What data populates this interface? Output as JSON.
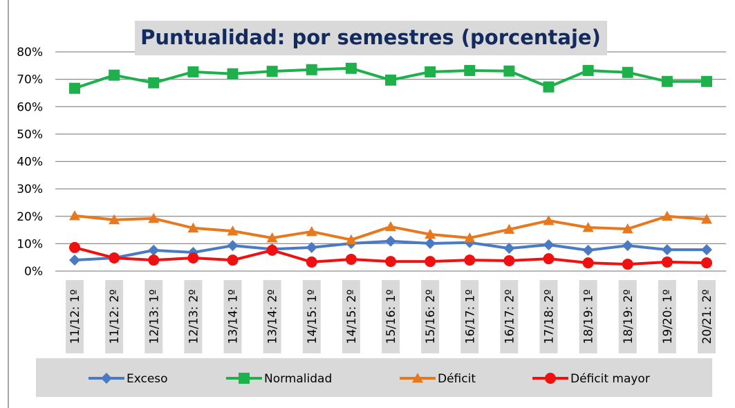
{
  "chart_data": {
    "type": "line",
    "title": "Puntualidad: por semestres (porcentaje)",
    "categories": [
      "11/12: 1º",
      "11/12: 2º",
      "12/13: 1º",
      "12/13: 2º",
      "13/14: 1º",
      "13/14: 2º",
      "14/15: 1º",
      "14/15: 2º",
      "15/16: 1º",
      "15/16: 2º",
      "16/17: 1º",
      "16/17: 2º",
      "17/18: 2º",
      "18/19: 1º",
      "18/19: 2º",
      "19/20: 1º",
      "20/21: 2º"
    ],
    "series": [
      {
        "name": "Exceso",
        "color": "#4a7ac4",
        "marker": "diamond",
        "values": [
          4,
          4.8,
          7.6,
          6.8,
          9.3,
          8,
          8.6,
          10.1,
          10.9,
          10.1,
          10.4,
          8.3,
          9.6,
          7.6,
          9.3,
          7.8,
          7.8
        ]
      },
      {
        "name": "Normalidad",
        "color": "#1db04b",
        "marker": "square",
        "values": [
          66.7,
          71.5,
          68.7,
          72.7,
          72,
          72.9,
          73.5,
          74,
          69.7,
          72.7,
          73.2,
          73,
          67.2,
          73.2,
          72.5,
          69.2,
          69.2
        ]
      },
      {
        "name": "Déficit",
        "color": "#e8781e",
        "marker": "triangle",
        "values": [
          20.2,
          18.7,
          19.2,
          15.7,
          14.6,
          12.1,
          14.4,
          11.4,
          16.2,
          13.4,
          12.1,
          15.2,
          18.4,
          15.9,
          15.4,
          20,
          18.9
        ]
      },
      {
        "name": "Déficit mayor",
        "color": "#f01010",
        "marker": "circle",
        "values": [
          8.6,
          4.8,
          4,
          4.8,
          4,
          7.6,
          3.3,
          4.3,
          3.5,
          3.5,
          4,
          3.8,
          4.5,
          3,
          2.5,
          3.3,
          3
        ]
      }
    ],
    "ylim": [
      0,
      80
    ],
    "yticks": [
      {
        "value": 0,
        "label": "0%"
      },
      {
        "value": 10,
        "label": "10%"
      },
      {
        "value": 20,
        "label": "20%"
      },
      {
        "value": 30,
        "label": "30%"
      },
      {
        "value": 40,
        "label": "40%"
      },
      {
        "value": 50,
        "label": "50%"
      },
      {
        "value": 60,
        "label": "60%"
      },
      {
        "value": 70,
        "label": "70%"
      },
      {
        "value": 80,
        "label": "80%"
      }
    ],
    "grid": true,
    "legend": "bottom"
  }
}
